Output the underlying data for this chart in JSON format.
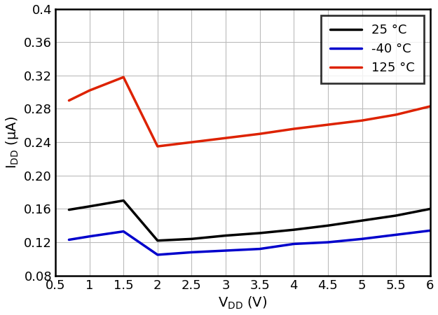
{
  "xlabel": "V$_\\mathregular{DD}$ (V)",
  "ylabel": "I$_\\mathregular{DD}$ (μA)",
  "xlim": [
    0.5,
    6.0
  ],
  "ylim": [
    0.08,
    0.4
  ],
  "xticks": [
    0.5,
    1.0,
    1.5,
    2.0,
    2.5,
    3.0,
    3.5,
    4.0,
    4.5,
    5.0,
    5.5,
    6.0
  ],
  "yticks": [
    0.08,
    0.12,
    0.16,
    0.2,
    0.24,
    0.28,
    0.32,
    0.36,
    0.4
  ],
  "xtick_labels": [
    "0.5",
    "1",
    "1.5",
    "2",
    "2.5",
    "3",
    "3.5",
    "4",
    "4.5",
    "5",
    "5.5",
    "6"
  ],
  "ytick_labels": [
    "0.08",
    "0.12",
    "0.16",
    "0.20",
    "0.24",
    "0.28",
    "0.32",
    "0.36",
    "0.4"
  ],
  "series": [
    {
      "label": "25 °C",
      "color": "#000000",
      "linewidth": 2.5,
      "x": [
        0.7,
        1.0,
        1.5,
        2.0,
        2.5,
        3.0,
        3.5,
        4.0,
        4.5,
        5.0,
        5.5,
        6.0
      ],
      "y": [
        0.159,
        0.163,
        0.17,
        0.122,
        0.124,
        0.128,
        0.131,
        0.135,
        0.14,
        0.146,
        0.152,
        0.16
      ]
    },
    {
      "label": "-40 °C",
      "color": "#0000cc",
      "linewidth": 2.5,
      "x": [
        0.7,
        1.0,
        1.5,
        2.0,
        2.5,
        3.0,
        3.5,
        4.0,
        4.5,
        5.0,
        5.5,
        6.0
      ],
      "y": [
        0.123,
        0.127,
        0.133,
        0.105,
        0.108,
        0.11,
        0.112,
        0.118,
        0.12,
        0.124,
        0.129,
        0.134
      ]
    },
    {
      "label": "125 °C",
      "color": "#dd2200",
      "linewidth": 2.5,
      "x": [
        0.7,
        1.0,
        1.5,
        2.0,
        2.5,
        3.0,
        3.5,
        4.0,
        4.5,
        5.0,
        5.5,
        6.0
      ],
      "y": [
        0.29,
        0.302,
        0.318,
        0.235,
        0.24,
        0.245,
        0.25,
        0.256,
        0.261,
        0.266,
        0.273,
        0.283
      ]
    }
  ],
  "legend_loc": "upper right",
  "grid_color": "#bbbbbb",
  "background_color": "#ffffff",
  "figure_background": "#ffffff",
  "tick_fontsize": 13,
  "label_fontsize": 14,
  "legend_fontsize": 13
}
